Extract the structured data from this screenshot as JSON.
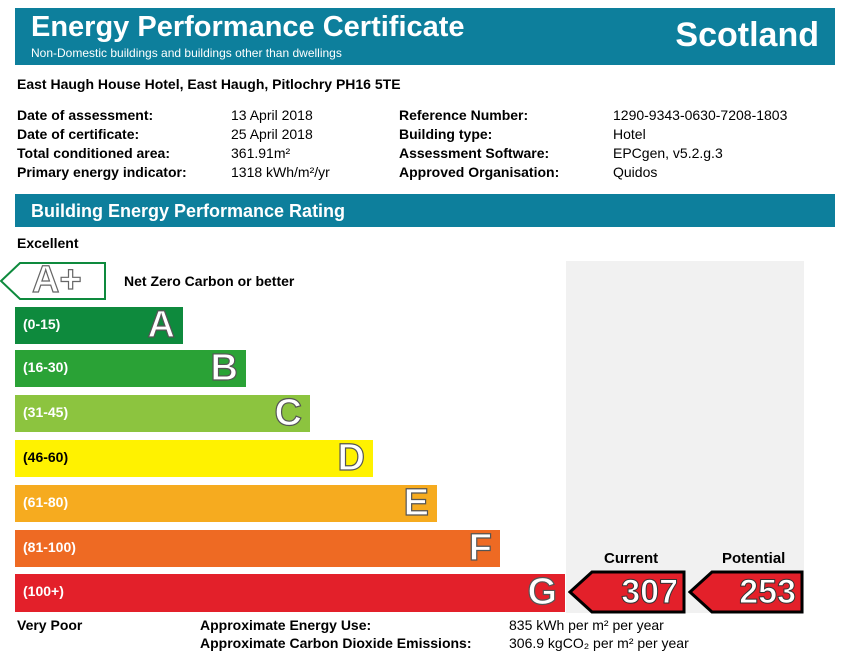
{
  "header": {
    "title": "Energy Performance Certificate",
    "subtitle": "Non-Domestic buildings and buildings other than dwellings",
    "region": "Scotland"
  },
  "address": "East Haugh House Hotel, East Haugh, Pitlochry PH16 5TE",
  "info_left": [
    {
      "label": "Date of assessment:",
      "value": "13 April 2018"
    },
    {
      "label": "Date of certificate:",
      "value": "25 April 2018"
    },
    {
      "label": "Total conditioned area:",
      "value": "361.91m²"
    },
    {
      "label": "Primary energy indicator:",
      "value": "1318 kWh/m²/yr"
    }
  ],
  "info_right": [
    {
      "label": "Reference Number:",
      "value": "1290-9343-0630-7208-1803"
    },
    {
      "label": "Building type:",
      "value": "Hotel"
    },
    {
      "label": "Assessment Software:",
      "value": "EPCgen, v5.2.g.3"
    },
    {
      "label": "Approved Organisation:",
      "value": "Quidos"
    }
  ],
  "section_title": "Building Energy Performance Rating",
  "scale_top": "Excellent",
  "scale_bottom": "Very Poor",
  "aplus": {
    "letter": "A+",
    "label": "Net Zero Carbon or better"
  },
  "bands": [
    {
      "range": "(0-15)",
      "letter": "A",
      "color": "#0e8a3d"
    },
    {
      "range": "(16-30)",
      "letter": "B",
      "color": "#2aa236"
    },
    {
      "range": "(31-45)",
      "letter": "C",
      "color": "#8cc43f"
    },
    {
      "range": "(46-60)",
      "letter": "D",
      "color": "#fff200"
    },
    {
      "range": "(61-80)",
      "letter": "E",
      "color": "#f6ab1f"
    },
    {
      "range": "(81-100)",
      "letter": "F",
      "color": "#ee6a23"
    },
    {
      "range": "(100+)",
      "letter": "G",
      "color": "#e3202a"
    }
  ],
  "current": {
    "heading": "Current",
    "value": "307"
  },
  "potential": {
    "heading": "Potential",
    "value": "253"
  },
  "energy_use": {
    "label": "Approximate Energy Use:",
    "value": "835 kWh per m² per year"
  },
  "co2": {
    "label": "Approximate Carbon Dioxide Emissions:",
    "value": "306.9 kgCO₂ per m² per year"
  }
}
